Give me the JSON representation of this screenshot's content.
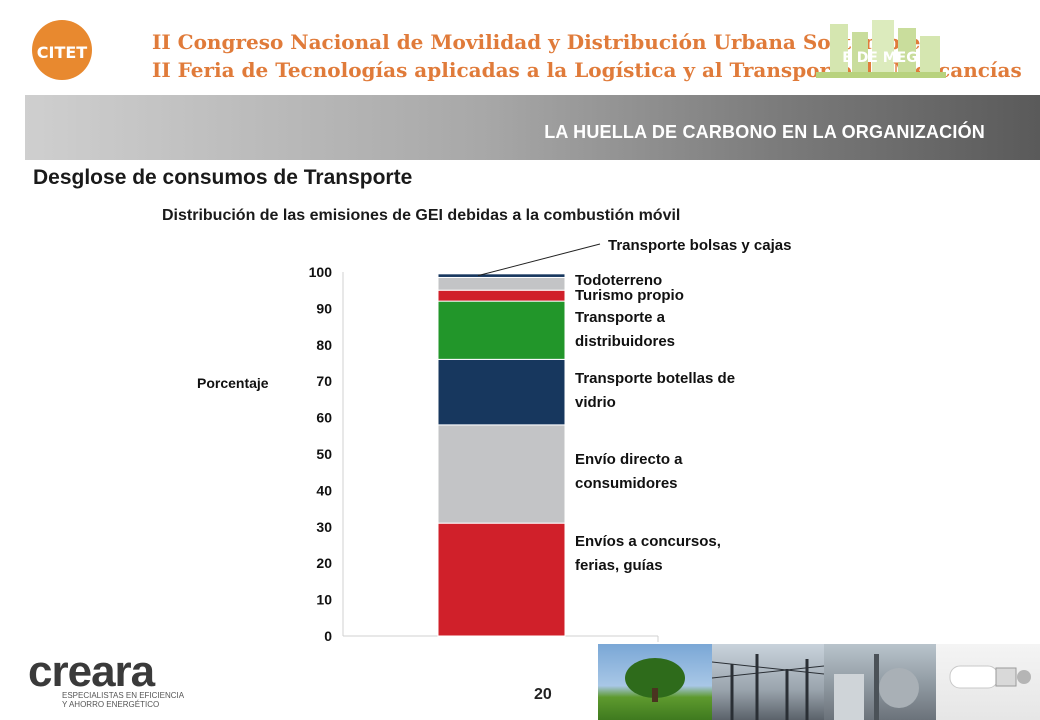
{
  "header": {
    "logo_text": "CITET",
    "congress_line1": "II Congreso Nacional de Movilidad y Distribución Urbana Sostenible",
    "congress_line2": "II Feria de Tecnologías aplicadas a la Logística y al Transporte de Mercancías",
    "city_logo_text": "E DE MEG"
  },
  "banner": {
    "title": "LA HUELLA DE CARBONO EN LA ORGANIZACIÓN"
  },
  "section_title": "Desglose de consumos de Transporte",
  "footer": {
    "logo_text": "creara",
    "logo_tagline_1": "ESPECIALISTAS EN EFICIENCIA",
    "logo_tagline_2": "Y AHORRO ENERGÉTICO",
    "page_number": "20"
  },
  "chart_data": {
    "type": "bar",
    "stacked": true,
    "title": "Distribución de las emisiones de GEI debidas a la combustión móvil",
    "ylabel": "Porcentaje",
    "xlabel": "",
    "ylim": [
      0,
      100
    ],
    "yticks": [
      0,
      10,
      20,
      30,
      40,
      50,
      60,
      70,
      80,
      90,
      100
    ],
    "grid": false,
    "series": [
      {
        "name": "Envíos a concursos, ferias, guías",
        "label_lines": [
          "Envíos a concursos,",
          "ferias, guías"
        ],
        "value": 31,
        "color": "#d0202a"
      },
      {
        "name": "Envío directo a consumidores",
        "label_lines": [
          "Envío directo a",
          "consumidores"
        ],
        "value": 27,
        "color": "#c3c4c6"
      },
      {
        "name": "Transporte botellas de vidrio",
        "label_lines": [
          "Transporte botellas de",
          "vidrio"
        ],
        "value": 18,
        "color": "#17375e"
      },
      {
        "name": "Transporte a distribuidores",
        "label_lines": [
          "Transporte a",
          "distribuidores"
        ],
        "value": 16,
        "color": "#22962a"
      },
      {
        "name": "Turismo propio",
        "label_lines": [
          "Turismo propio"
        ],
        "value": 3,
        "color": "#d0202a"
      },
      {
        "name": "Todoterreno",
        "label_lines": [
          "Todoterreno"
        ],
        "value": 3.5,
        "color": "#c3c4c6"
      },
      {
        "name": "Transporte bolsas y cajas",
        "label_lines": [
          "Transporte bolsas y cajas"
        ],
        "value": 1,
        "color": "#17375e"
      }
    ]
  }
}
